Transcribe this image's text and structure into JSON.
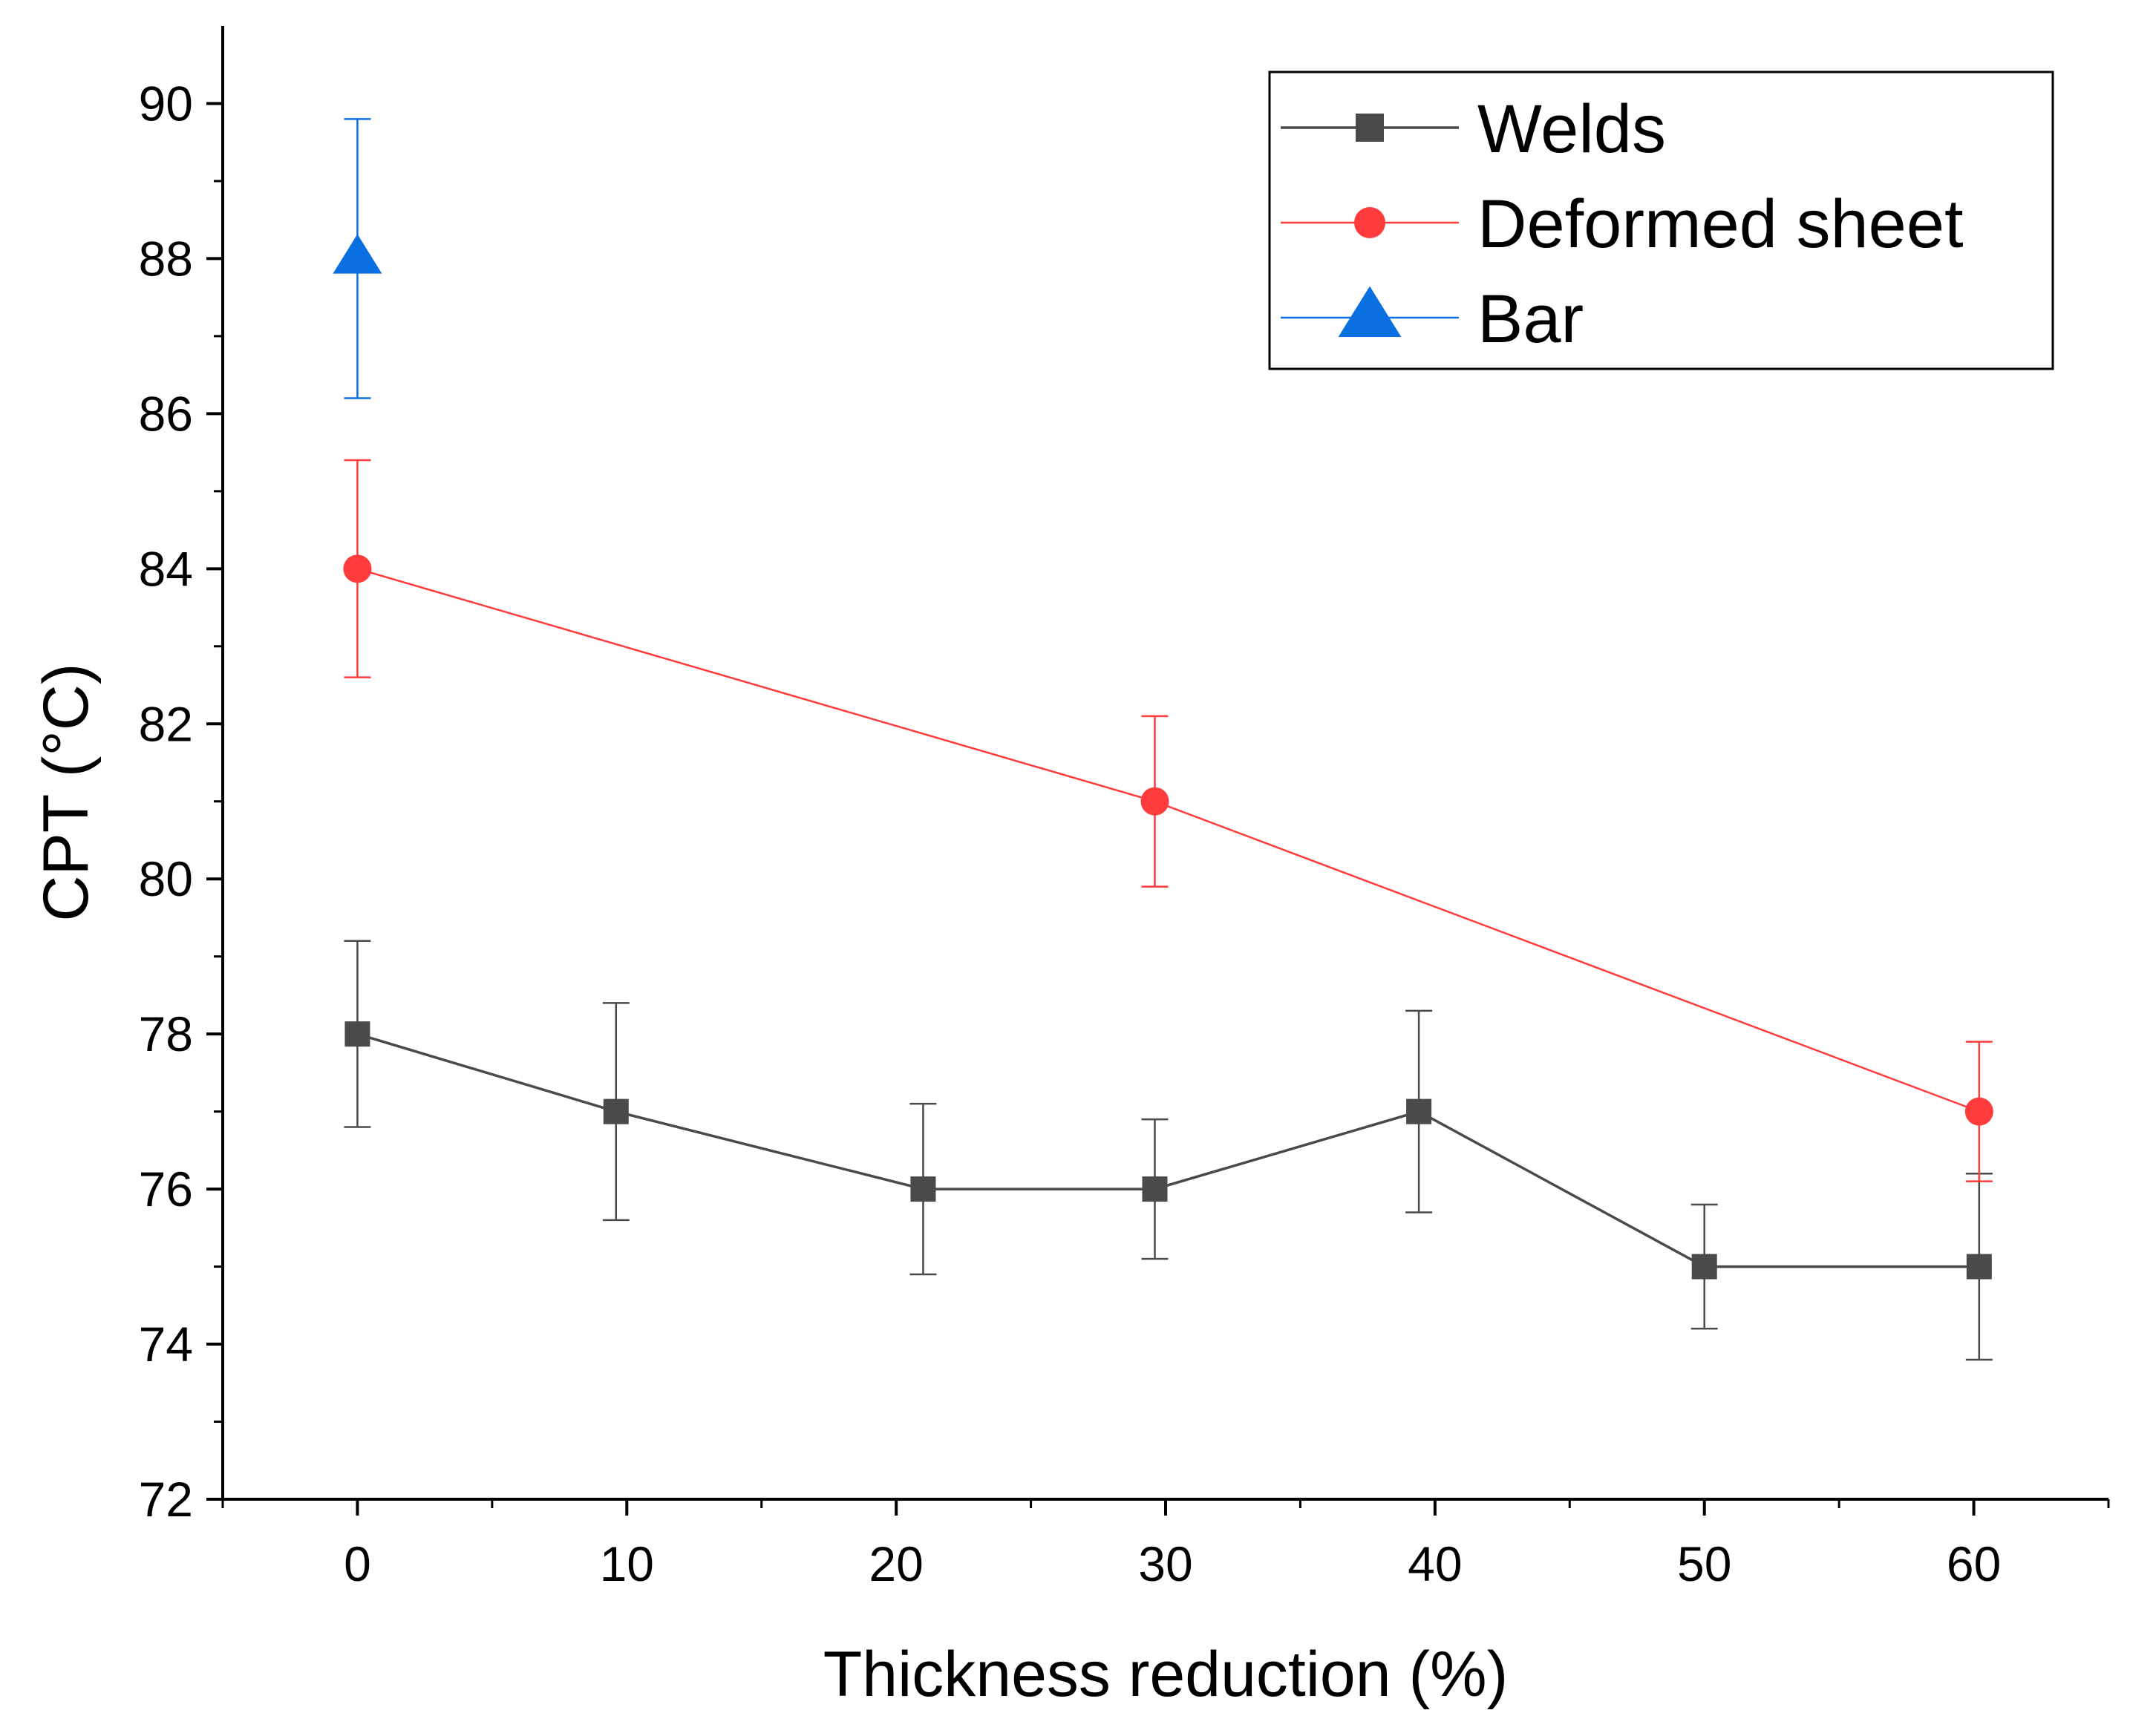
{
  "chart_data": {
    "type": "line",
    "xlabel": "Thickness reduction (%)",
    "ylabel": "CPT (°C)",
    "xlim": [
      -5,
      65
    ],
    "ylim": [
      72,
      91
    ],
    "xticks": [
      0,
      10,
      20,
      30,
      40,
      50,
      60
    ],
    "xtick_labels": [
      "0",
      "10",
      "20",
      "30",
      "40",
      "50",
      "60"
    ],
    "yticks": [
      72,
      74,
      76,
      78,
      80,
      82,
      84,
      86,
      88,
      90
    ],
    "ytick_labels": [
      "72",
      "74",
      "76",
      "78",
      "80",
      "82",
      "84",
      "86",
      "88",
      "90"
    ],
    "legend_position": "top-right",
    "series": [
      {
        "name": "Welds",
        "marker": "square",
        "color": "#4a4a4a",
        "x": [
          0,
          9.6,
          21,
          29.6,
          39.4,
          50,
          60.2
        ],
        "y": [
          78,
          77,
          76,
          76,
          77,
          75,
          75
        ],
        "err_upper": [
          79.2,
          78.4,
          77.1,
          76.9,
          78.3,
          75.8,
          76.2
        ],
        "err_lower": [
          76.8,
          75.6,
          74.9,
          75.1,
          75.7,
          74.2,
          73.8
        ]
      },
      {
        "name": "Deformed sheet",
        "marker": "circle",
        "color": "#ff3b3b",
        "x": [
          0,
          29.6,
          60.2
        ],
        "y": [
          84,
          81,
          77
        ],
        "err_upper": [
          85.4,
          82.1,
          77.9
        ],
        "err_lower": [
          82.6,
          79.9,
          76.1
        ]
      },
      {
        "name": "Bar",
        "marker": "triangle",
        "color": "#0a6fe0",
        "x": [
          0
        ],
        "y": [
          88
        ],
        "err_upper": [
          89.8
        ],
        "err_lower": [
          86.2
        ]
      }
    ]
  }
}
